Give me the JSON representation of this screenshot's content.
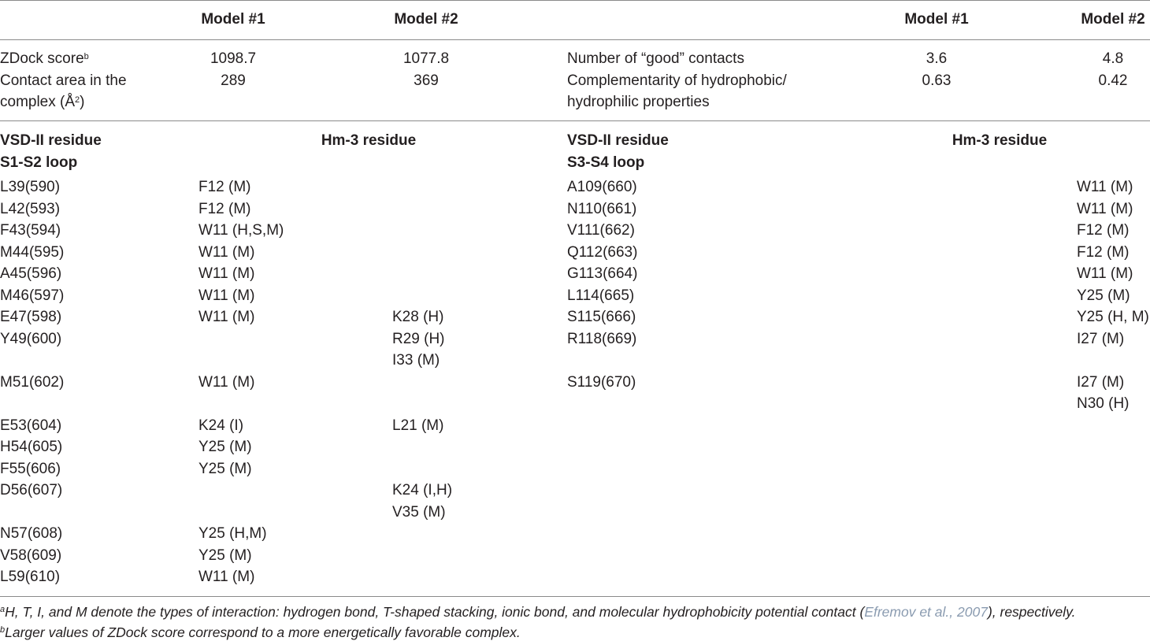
{
  "header": {
    "model1": "Model #1",
    "model2": "Model #2",
    "model1_right": "Model #1",
    "model2_right": "Model #2"
  },
  "scores": {
    "left": [
      {
        "label": "ZDock score",
        "label_sup": "b",
        "m1": "1098.7",
        "m2": "1077.8"
      },
      {
        "label": "Contact area in the",
        "label_line2": "complex (Å",
        "label_line2_sup": "2",
        "label_line2_end": ")",
        "m1": "289",
        "m2": "369"
      }
    ],
    "right": [
      {
        "label": "Number of “good” contacts",
        "m1": "3.6",
        "m2": "4.8"
      },
      {
        "label": "Complementarity of hydrophobic/",
        "label_line2": "hydrophilic properties",
        "m1": "0.63",
        "m2": "0.42"
      }
    ]
  },
  "residues_header": {
    "left_col": "VSD-II residue",
    "left_hm": "Hm-3 residue",
    "left_loop": "S1-S2 loop",
    "right_col": "VSD-II residue",
    "right_hm": "Hm-3 residue",
    "right_loop": "S3-S4 loop"
  },
  "left_rows": [
    {
      "res": "L39(590)",
      "m1": "F12 (M)",
      "m2": ""
    },
    {
      "res": "L42(593)",
      "m1": "F12 (M)",
      "m2": ""
    },
    {
      "res": "F43(594)",
      "m1": "W11 (H,S,M)",
      "m2": ""
    },
    {
      "res": "M44(595)",
      "m1": "W11 (M)",
      "m2": ""
    },
    {
      "res": "A45(596)",
      "m1": "W11 (M)",
      "m2": ""
    },
    {
      "res": "M46(597)",
      "m1": "W11 (M)",
      "m2": ""
    },
    {
      "res": "E47(598)",
      "m1": "W11 (M)",
      "m2": "K28 (H)"
    },
    {
      "res": "Y49(600)",
      "m1": "",
      "m2": "R29 (H)"
    },
    {
      "res": "",
      "m1": "",
      "m2": "I33 (M)"
    },
    {
      "res": "M51(602)",
      "m1": "W11 (M)",
      "m2": ""
    },
    {
      "res": "",
      "m1": "",
      "m2": ""
    },
    {
      "res": "E53(604)",
      "m1": "K24 (I)",
      "m2": "L21 (M)"
    },
    {
      "res": "H54(605)",
      "m1": "Y25 (M)",
      "m2": ""
    },
    {
      "res": "F55(606)",
      "m1": "Y25 (M)",
      "m2": ""
    },
    {
      "res": "D56(607)",
      "m1": "",
      "m2": "K24 (I,H)"
    },
    {
      "res": "",
      "m1": "",
      "m2": "V35 (M)"
    },
    {
      "res": "N57(608)",
      "m1": "Y25 (H,M)",
      "m2": ""
    },
    {
      "res": "V58(609)",
      "m1": "Y25 (M)",
      "m2": ""
    },
    {
      "res": "L59(610)",
      "m1": "W11 (M)",
      "m2": ""
    }
  ],
  "right_rows": [
    {
      "res": "A109(660)",
      "m1": "",
      "m2": "W11 (M)"
    },
    {
      "res": "N110(661)",
      "m1": "",
      "m2": "W11 (M)"
    },
    {
      "res": "V111(662)",
      "m1": "",
      "m2": "F12 (M)"
    },
    {
      "res": "Q112(663)",
      "m1": "",
      "m2": "F12 (M)"
    },
    {
      "res": "G113(664)",
      "m1": "",
      "m2": "W11 (M)"
    },
    {
      "res": "L114(665)",
      "m1": "",
      "m2": "Y25 (M)"
    },
    {
      "res": "S115(666)",
      "m1": "",
      "m2": "Y25 (H, M)"
    },
    {
      "res": "R118(669)",
      "m1": "",
      "m2": "I27 (M)"
    },
    {
      "res": "",
      "m1": "",
      "m2": ""
    },
    {
      "res": "S119(670)",
      "m1": "",
      "m2": "I27 (M)"
    },
    {
      "res": "",
      "m1": "",
      "m2": "N30 (H)"
    }
  ],
  "footnotes": {
    "a_mark": "a",
    "a_text_1": "H, T, I, and M denote the types of interaction: hydrogen bond, T-shaped stacking, ionic bond, and molecular hydrophobicity potential contact (",
    "a_link": "Efremov et al., 2007",
    "a_text_2": "), respectively.",
    "b_mark": "b",
    "b_text": "Larger values of ZDock score correspond to a more energetically favorable complex."
  }
}
